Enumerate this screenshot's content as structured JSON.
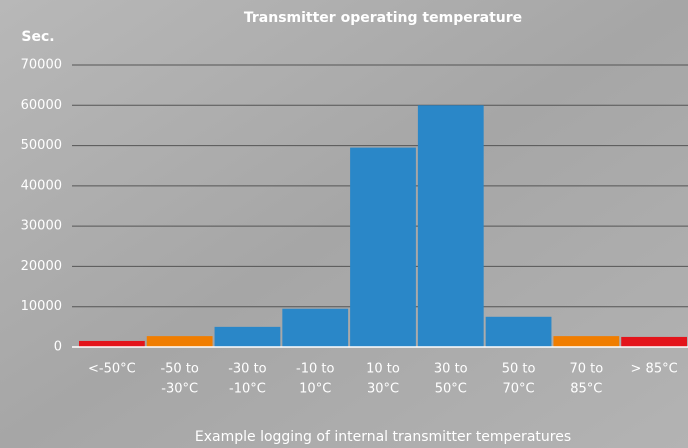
{
  "chart_data": {
    "type": "bar",
    "title": "Transmitter operating temperature",
    "y_label": "Sec.",
    "caption": "Example logging of internal transmitter temperatures",
    "categories": [
      [
        "<-50°C"
      ],
      [
        "-50 to",
        "-30°C"
      ],
      [
        "-30 to",
        "-10°C"
      ],
      [
        "-10 to",
        "10°C"
      ],
      [
        "10 to",
        "30°C"
      ],
      [
        "30 to",
        "50°C"
      ],
      [
        "50 to",
        "70°C"
      ],
      [
        "70 to",
        "85°C"
      ],
      [
        "> 85°C"
      ]
    ],
    "values": [
      1500,
      2700,
      5000,
      9500,
      49500,
      60000,
      7500,
      2700,
      2500
    ],
    "colors": [
      "#e3141b",
      "#f07d00",
      "#2a87c8",
      "#2a87c8",
      "#2a87c8",
      "#2a87c8",
      "#2a87c8",
      "#f07d00",
      "#e3141b"
    ],
    "ylim": [
      0,
      70000
    ],
    "yticks": [
      0,
      10000,
      20000,
      30000,
      40000,
      50000,
      60000,
      70000
    ],
    "grid": true
  }
}
